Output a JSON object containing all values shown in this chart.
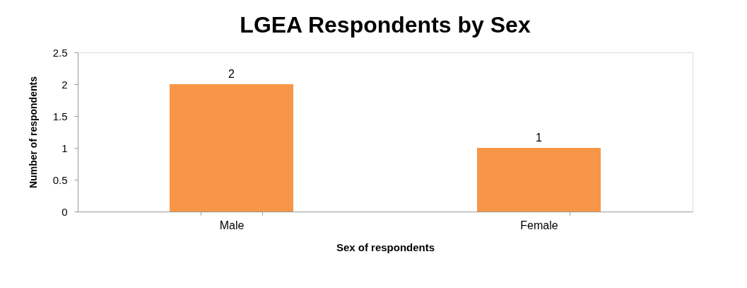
{
  "chart_data": {
    "type": "bar",
    "title": "LGEA Respondents by Sex",
    "xlabel": "Sex of respondents",
    "ylabel": "Number of respondents",
    "categories": [
      "Male",
      "Female"
    ],
    "series": [
      {
        "color": "#f79646",
        "values": [
          2,
          1
        ]
      }
    ],
    "ylim": [
      0,
      2.5
    ],
    "yticks": [
      0,
      0.5,
      1,
      1.5,
      2,
      2.5
    ],
    "grid": false,
    "legend": false,
    "data_labels": true
  }
}
